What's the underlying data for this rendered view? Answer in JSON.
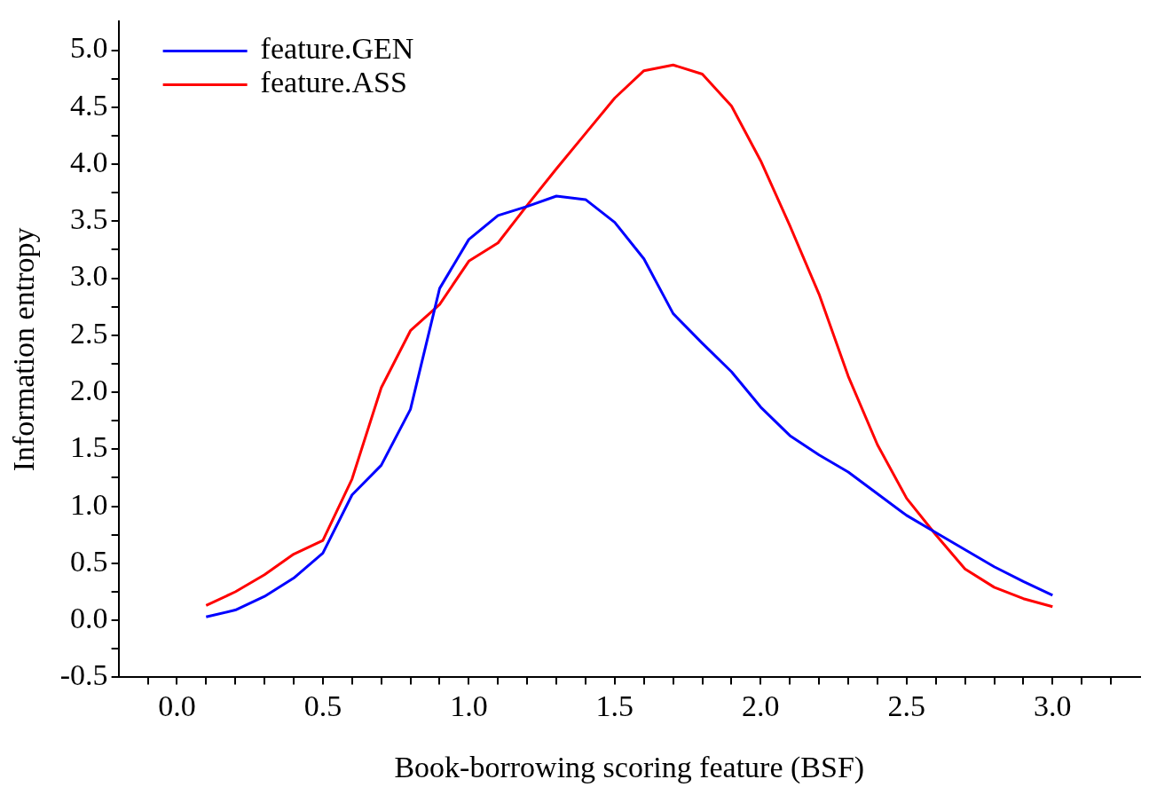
{
  "chart_data": {
    "type": "line",
    "xlabel": "Book-borrowing scoring feature (BSF)",
    "ylabel": "Information entropy",
    "x": [
      0.1,
      0.2,
      0.3,
      0.4,
      0.5,
      0.6,
      0.7,
      0.8,
      0.9,
      1.0,
      1.1,
      1.2,
      1.3,
      1.4,
      1.5,
      1.6,
      1.7,
      1.8,
      1.9,
      2.0,
      2.1,
      2.2,
      2.3,
      2.4,
      2.5,
      2.6,
      2.7,
      2.8,
      2.9,
      3.0
    ],
    "series": [
      {
        "name": "feature.GEN",
        "color": "#0000ff",
        "values": [
          0.03,
          0.09,
          0.21,
          0.37,
          0.59,
          1.1,
          1.36,
          1.85,
          2.91,
          3.34,
          3.55,
          3.63,
          3.72,
          3.69,
          3.49,
          3.17,
          2.69,
          2.43,
          2.18,
          1.87,
          1.62,
          1.45,
          1.3,
          1.11,
          0.92,
          0.77,
          0.62,
          0.47,
          0.34,
          0.22
        ]
      },
      {
        "name": "feature.ASS",
        "color": "#ff0000",
        "values": [
          0.13,
          0.25,
          0.4,
          0.58,
          0.7,
          1.24,
          2.04,
          2.54,
          2.77,
          3.15,
          3.31,
          3.64,
          3.96,
          4.27,
          4.58,
          4.82,
          4.87,
          4.79,
          4.51,
          4.03,
          3.46,
          2.86,
          2.14,
          1.54,
          1.07,
          0.75,
          0.45,
          0.29,
          0.19,
          0.12
        ]
      }
    ],
    "xlim": [
      -0.2,
      3.3
    ],
    "xticks": [
      {
        "value": -0.1,
        "label": null
      },
      {
        "value": 0,
        "label": "0.0"
      },
      {
        "value": 0.1,
        "label": null
      },
      {
        "value": 0.2,
        "label": null
      },
      {
        "value": 0.3,
        "label": null
      },
      {
        "value": 0.4,
        "label": null
      },
      0.5,
      {
        "value": 0.6,
        "label": null
      },
      {
        "value": 0.7,
        "label": null
      },
      {
        "value": 0.8,
        "label": null
      },
      {
        "value": 0.9,
        "label": null
      },
      {
        "value": 1,
        "label": "1.0"
      },
      {
        "value": 1.1,
        "label": null
      },
      {
        "value": 1.2,
        "label": null
      },
      {
        "value": 1.3,
        "label": null
      },
      {
        "value": 1.4,
        "label": null
      },
      1.5,
      {
        "value": 1.6,
        "label": null
      },
      {
        "value": 1.7,
        "label": null
      },
      {
        "value": 1.8,
        "label": null
      },
      {
        "value": 1.9,
        "label": null
      },
      {
        "value": 2,
        "label": "2.0"
      },
      {
        "value": 2.1,
        "label": null
      },
      {
        "value": 2.2,
        "label": null
      },
      {
        "value": 2.3,
        "label": null
      },
      {
        "value": 2.4,
        "label": null
      },
      2.5,
      {
        "value": 2.6,
        "label": null
      },
      {
        "value": 2.7,
        "label": null
      },
      {
        "value": 2.8,
        "label": null
      },
      {
        "value": 2.9,
        "label": null
      },
      {
        "value": 3,
        "label": "3.0"
      },
      {
        "value": 3.1,
        "label": null
      },
      {
        "value": 3.2,
        "label": null
      }
    ],
    "ylim": [
      -0.5,
      5.25
    ],
    "yticks": [
      -0.5,
      {
        "value": -0.25,
        "label": null
      },
      {
        "value": 0,
        "label": "0.0"
      },
      {
        "value": 0.25,
        "label": null
      },
      0.5,
      {
        "value": 0.75,
        "label": null
      },
      {
        "value": 1,
        "label": "1.0"
      },
      {
        "value": 1.25,
        "label": null
      },
      1.5,
      {
        "value": 1.75,
        "label": null
      },
      {
        "value": 2,
        "label": "2.0"
      },
      {
        "value": 2.25,
        "label": null
      },
      2.5,
      {
        "value": 2.75,
        "label": null
      },
      {
        "value": 3,
        "label": "3.0"
      },
      {
        "value": 3.25,
        "label": null
      },
      3.5,
      {
        "value": 3.75,
        "label": null
      },
      {
        "value": 4,
        "label": "4.0"
      },
      {
        "value": 4.25,
        "label": null
      },
      4.5,
      {
        "value": 4.75,
        "label": null
      },
      {
        "value": 5,
        "label": "5.0"
      }
    ],
    "grid": false,
    "legend": "top left",
    "marker": "none",
    "line_style": "solid"
  }
}
